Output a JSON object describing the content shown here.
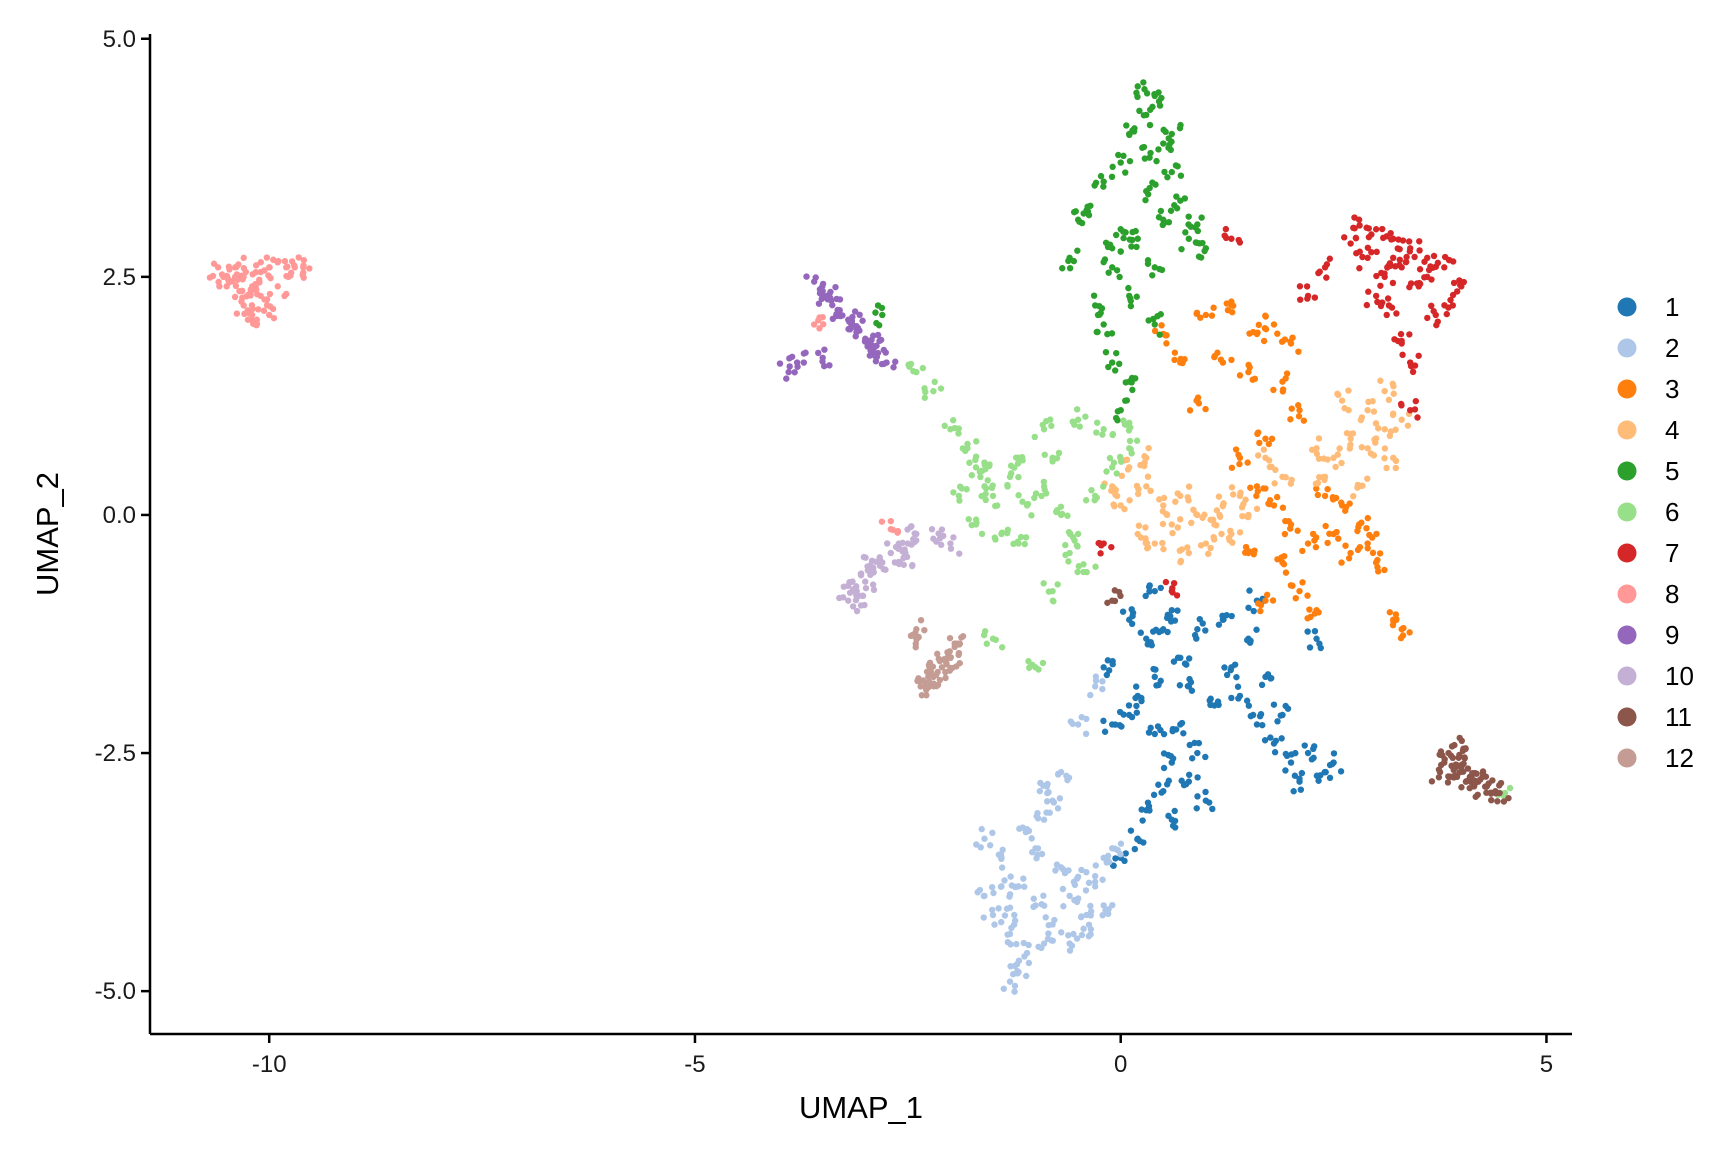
{
  "chart_data": {
    "type": "scatter",
    "xlabel": "UMAP_1",
    "ylabel": "UMAP_2",
    "xlim": [
      -11.4,
      5.3
    ],
    "ylim": [
      -5.45,
      5.05
    ],
    "xticks": [
      -10,
      -5,
      0,
      5
    ],
    "xtick_labels": [
      "-10",
      "-5",
      "0",
      "5"
    ],
    "yticks": [
      -5,
      -2.5,
      0,
      2.5,
      5
    ],
    "ytick_labels": [
      "-5.0",
      "-2.5",
      "0.0",
      "2.5",
      "5.0"
    ],
    "grid": false,
    "legend_position": "right",
    "clusters": [
      {
        "name": "1",
        "color": "#1f77b4",
        "points": [
          [
            0.1,
            -1.1
          ],
          [
            0.3,
            -1.3
          ],
          [
            0.5,
            -1.2
          ],
          [
            0.7,
            -1.5
          ],
          [
            0.4,
            -1.7
          ],
          [
            0.2,
            -1.9
          ],
          [
            0.6,
            -1.0
          ],
          [
            0.8,
            -1.8
          ],
          [
            0.1,
            -2.1
          ],
          [
            0.4,
            -2.3
          ],
          [
            0.6,
            -2.6
          ],
          [
            0.5,
            -2.9
          ],
          [
            0.3,
            -3.1
          ],
          [
            0.6,
            -3.2
          ],
          [
            0.8,
            -2.8
          ],
          [
            0.2,
            -3.4
          ],
          [
            0.0,
            -3.6
          ],
          [
            0.9,
            -2.5
          ],
          [
            1.1,
            -2.0
          ],
          [
            1.3,
            -1.6
          ],
          [
            1.5,
            -1.3
          ],
          [
            1.4,
            -1.9
          ],
          [
            1.6,
            -2.2
          ],
          [
            1.8,
            -2.4
          ],
          [
            2.0,
            -2.6
          ],
          [
            2.2,
            -2.5
          ],
          [
            2.4,
            -2.7
          ],
          [
            2.1,
            -2.8
          ],
          [
            1.7,
            -1.7
          ],
          [
            1.9,
            -2.1
          ],
          [
            1.2,
            -1.1
          ],
          [
            1.6,
            -0.9
          ],
          [
            -0.2,
            -1.6
          ],
          [
            -0.1,
            -2.2
          ],
          [
            0.9,
            -1.2
          ],
          [
            2.3,
            -1.3
          ],
          [
            0.7,
            -2.2
          ],
          [
            1.0,
            -3.0
          ],
          [
            0.4,
            -0.8
          ],
          [
            2.5,
            -2.6
          ]
        ]
      },
      {
        "name": "2",
        "color": "#aec7e8",
        "points": [
          [
            -1.6,
            -3.4
          ],
          [
            -1.4,
            -3.6
          ],
          [
            -1.2,
            -3.9
          ],
          [
            -1.0,
            -4.1
          ],
          [
            -0.8,
            -4.3
          ],
          [
            -0.6,
            -4.0
          ],
          [
            -0.4,
            -4.2
          ],
          [
            -0.2,
            -4.1
          ],
          [
            -1.5,
            -4.2
          ],
          [
            -1.3,
            -4.4
          ],
          [
            -1.1,
            -4.6
          ],
          [
            -1.2,
            -4.8
          ],
          [
            -1.0,
            -3.5
          ],
          [
            -0.9,
            -3.2
          ],
          [
            -0.8,
            -3.0
          ],
          [
            -1.3,
            -4.9
          ],
          [
            -0.7,
            -3.7
          ],
          [
            -0.5,
            -3.8
          ],
          [
            -0.3,
            -3.9
          ],
          [
            -1.4,
            -3.9
          ],
          [
            -0.9,
            -4.5
          ],
          [
            -0.6,
            -4.5
          ],
          [
            -1.6,
            -4.0
          ],
          [
            -1.1,
            -3.3
          ],
          [
            -0.5,
            -2.2
          ],
          [
            -0.7,
            -2.7
          ],
          [
            -0.3,
            -1.8
          ],
          [
            -0.2,
            -3.6
          ],
          [
            -0.1,
            -3.5
          ],
          [
            -0.95,
            -2.9
          ],
          [
            -1.25,
            -4.2
          ],
          [
            -0.35,
            -4.35
          ]
        ]
      },
      {
        "name": "3",
        "color": "#ff7f0e",
        "points": [
          [
            1.3,
            2.2
          ],
          [
            1.6,
            1.9
          ],
          [
            1.8,
            2.0
          ],
          [
            2.0,
            1.8
          ],
          [
            1.5,
            1.5
          ],
          [
            1.9,
            1.4
          ],
          [
            2.1,
            1.1
          ],
          [
            1.7,
            0.8
          ],
          [
            1.4,
            0.6
          ],
          [
            1.6,
            0.3
          ],
          [
            1.8,
            0.1
          ],
          [
            2.0,
            -0.1
          ],
          [
            2.2,
            -0.3
          ],
          [
            1.9,
            -0.5
          ],
          [
            2.1,
            -0.8
          ],
          [
            2.3,
            -1.0
          ],
          [
            2.5,
            -0.2
          ],
          [
            2.7,
            -0.4
          ],
          [
            2.9,
            -0.3
          ],
          [
            3.0,
            -0.5
          ],
          [
            2.8,
            -0.1
          ],
          [
            1.2,
            1.6
          ],
          [
            0.9,
            1.2
          ],
          [
            0.7,
            1.6
          ],
          [
            0.5,
            1.9
          ],
          [
            1.0,
            2.1
          ],
          [
            3.2,
            -1.1
          ],
          [
            3.3,
            -1.2
          ],
          [
            1.5,
            -0.4
          ],
          [
            1.7,
            -0.9
          ],
          [
            2.4,
            0.2
          ],
          [
            2.6,
            0.1
          ]
        ]
      },
      {
        "name": "4",
        "color": "#ffbb78",
        "points": [
          [
            0.1,
            0.5
          ],
          [
            0.3,
            0.3
          ],
          [
            0.5,
            0.1
          ],
          [
            0.7,
            0.2
          ],
          [
            0.9,
            0.0
          ],
          [
            1.1,
            -0.1
          ],
          [
            1.3,
            -0.2
          ],
          [
            1.5,
            0.0
          ],
          [
            0.2,
            -0.2
          ],
          [
            0.4,
            -0.3
          ],
          [
            0.6,
            -0.1
          ],
          [
            0.8,
            -0.4
          ],
          [
            1.0,
            -0.3
          ],
          [
            1.2,
            0.1
          ],
          [
            1.4,
            0.2
          ],
          [
            2.3,
            0.7
          ],
          [
            2.5,
            0.6
          ],
          [
            2.7,
            0.8
          ],
          [
            2.9,
            0.7
          ],
          [
            3.1,
            0.9
          ],
          [
            3.3,
            1.0
          ],
          [
            3.2,
            0.6
          ],
          [
            2.8,
            0.3
          ],
          [
            2.4,
            0.4
          ],
          [
            2.6,
            1.2
          ],
          [
            2.9,
            1.1
          ],
          [
            3.1,
            1.3
          ],
          [
            0.0,
            0.1
          ],
          [
            -0.1,
            0.3
          ],
          [
            0.3,
            0.6
          ],
          [
            1.9,
            0.4
          ],
          [
            1.7,
            0.6
          ]
        ]
      },
      {
        "name": "5",
        "color": "#2ca02c",
        "points": [
          [
            0.2,
            4.5
          ],
          [
            0.4,
            4.4
          ],
          [
            0.3,
            4.2
          ],
          [
            0.1,
            4.0
          ],
          [
            0.5,
            3.9
          ],
          [
            0.0,
            3.7
          ],
          [
            -0.2,
            3.5
          ],
          [
            0.6,
            3.6
          ],
          [
            0.3,
            3.4
          ],
          [
            -0.4,
            3.2
          ],
          [
            -0.5,
            3.1
          ],
          [
            0.7,
            3.3
          ],
          [
            0.5,
            3.1
          ],
          [
            0.0,
            3.0
          ],
          [
            -0.1,
            2.8
          ],
          [
            0.2,
            2.9
          ],
          [
            0.8,
            2.9
          ],
          [
            1.0,
            2.8
          ],
          [
            0.4,
            2.6
          ],
          [
            -0.1,
            2.6
          ],
          [
            0.1,
            2.3
          ],
          [
            -0.2,
            2.0
          ],
          [
            0.4,
            2.0
          ],
          [
            -0.1,
            1.6
          ],
          [
            0.1,
            1.4
          ],
          [
            0.0,
            1.1
          ],
          [
            0.6,
            4.0
          ],
          [
            0.35,
            3.8
          ],
          [
            -0.3,
            2.2
          ],
          [
            -2.8,
            2.1
          ],
          [
            -0.6,
            2.7
          ],
          [
            0.9,
            3.05
          ]
        ]
      },
      {
        "name": "6",
        "color": "#98df8a",
        "points": [
          [
            -2.0,
            0.9
          ],
          [
            -1.8,
            0.7
          ],
          [
            -1.7,
            0.5
          ],
          [
            -1.6,
            0.3
          ],
          [
            -1.5,
            0.2
          ],
          [
            -1.3,
            0.4
          ],
          [
            -1.1,
            0.1
          ],
          [
            -0.9,
            0.3
          ],
          [
            -0.7,
            0.0
          ],
          [
            -0.5,
            -0.2
          ],
          [
            -0.3,
            0.2
          ],
          [
            -0.1,
            0.5
          ],
          [
            0.1,
            0.7
          ],
          [
            -1.9,
            0.2
          ],
          [
            -1.7,
            -0.1
          ],
          [
            -1.4,
            -0.2
          ],
          [
            -1.2,
            -0.3
          ],
          [
            -0.6,
            -0.4
          ],
          [
            -0.4,
            -0.6
          ],
          [
            -0.8,
            -0.8
          ],
          [
            -1.2,
            0.6
          ],
          [
            -0.8,
            0.6
          ],
          [
            -0.2,
            0.9
          ],
          [
            -0.5,
            1.0
          ],
          [
            -2.2,
            1.3
          ],
          [
            -2.4,
            1.5
          ],
          [
            -1.5,
            -1.3
          ],
          [
            -1.0,
            -1.6
          ],
          [
            -0.9,
            0.9
          ],
          [
            0.05,
            0.95
          ],
          [
            4.5,
            -2.95
          ],
          [
            -1.6,
            0.55
          ]
        ]
      },
      {
        "name": "7",
        "color": "#d62728",
        "points": [
          [
            2.8,
            3.1
          ],
          [
            3.0,
            3.0
          ],
          [
            3.2,
            2.9
          ],
          [
            3.4,
            2.8
          ],
          [
            3.6,
            2.7
          ],
          [
            3.8,
            2.6
          ],
          [
            4.0,
            2.4
          ],
          [
            3.9,
            2.2
          ],
          [
            3.7,
            2.1
          ],
          [
            3.5,
            2.4
          ],
          [
            3.3,
            2.6
          ],
          [
            3.1,
            2.5
          ],
          [
            2.9,
            2.7
          ],
          [
            2.4,
            2.6
          ],
          [
            2.2,
            2.3
          ],
          [
            3.0,
            2.3
          ],
          [
            3.2,
            2.7
          ],
          [
            3.6,
            2.5
          ],
          [
            3.3,
            1.8
          ],
          [
            3.4,
            1.6
          ],
          [
            3.4,
            1.1
          ],
          [
            1.3,
            2.9
          ],
          [
            0.6,
            -0.8
          ],
          [
            -0.2,
            -0.3
          ],
          [
            3.15,
            2.2
          ],
          [
            2.7,
            2.85
          ]
        ]
      },
      {
        "name": "8",
        "color": "#ff9896",
        "points": [
          [
            -10.6,
            2.6
          ],
          [
            -10.4,
            2.6
          ],
          [
            -10.3,
            2.5
          ],
          [
            -10.2,
            2.4
          ],
          [
            -10.0,
            2.6
          ],
          [
            -9.8,
            2.6
          ],
          [
            -9.7,
            2.6
          ],
          [
            -9.9,
            2.4
          ],
          [
            -10.1,
            2.3
          ],
          [
            -10.3,
            2.2
          ],
          [
            -10.2,
            2.1
          ],
          [
            -10.0,
            2.1
          ],
          [
            -10.4,
            2.5
          ],
          [
            -10.5,
            2.4
          ],
          [
            -9.6,
            2.6
          ],
          [
            -10.1,
            2.55
          ],
          [
            -10.25,
            2.05
          ],
          [
            -10.35,
            2.35
          ],
          [
            -3.6,
            2.0
          ],
          [
            -2.7,
            -0.15
          ]
        ]
      },
      {
        "name": "9",
        "color": "#9467bd",
        "points": [
          [
            -3.6,
            2.45
          ],
          [
            -3.5,
            2.35
          ],
          [
            -3.4,
            2.25
          ],
          [
            -3.3,
            2.15
          ],
          [
            -3.2,
            2.05
          ],
          [
            -3.1,
            1.95
          ],
          [
            -3.0,
            1.85
          ],
          [
            -2.9,
            1.75
          ],
          [
            -2.85,
            1.7
          ],
          [
            -2.75,
            1.6
          ],
          [
            -3.9,
            1.5
          ],
          [
            -3.8,
            1.6
          ],
          [
            -3.5,
            1.65
          ],
          [
            -3.45,
            2.3
          ],
          [
            -3.15,
            2.0
          ],
          [
            -2.95,
            1.8
          ]
        ]
      },
      {
        "name": "10",
        "color": "#c5b0d5",
        "points": [
          [
            -2.4,
            -0.2
          ],
          [
            -2.5,
            -0.3
          ],
          [
            -2.6,
            -0.35
          ],
          [
            -2.7,
            -0.4
          ],
          [
            -2.8,
            -0.5
          ],
          [
            -2.9,
            -0.6
          ],
          [
            -3.0,
            -0.7
          ],
          [
            -3.1,
            -0.8
          ],
          [
            -3.2,
            -0.9
          ],
          [
            -3.15,
            -0.7
          ],
          [
            -2.2,
            -0.25
          ],
          [
            -2.0,
            -0.3
          ],
          [
            -2.55,
            -0.45
          ],
          [
            -2.95,
            -0.55
          ],
          [
            -3.05,
            -0.95
          ]
        ]
      },
      {
        "name": "11",
        "color": "#8c564b",
        "points": [
          [
            3.8,
            -2.6
          ],
          [
            3.9,
            -2.55
          ],
          [
            4.0,
            -2.65
          ],
          [
            4.1,
            -2.75
          ],
          [
            4.2,
            -2.8
          ],
          [
            4.3,
            -2.85
          ],
          [
            4.4,
            -2.9
          ],
          [
            3.75,
            -2.7
          ],
          [
            3.95,
            -2.75
          ],
          [
            4.15,
            -2.85
          ],
          [
            4.45,
            -2.92
          ],
          [
            3.85,
            -2.5
          ],
          [
            -0.1,
            -0.9
          ],
          [
            4.05,
            -2.45
          ],
          [
            4.25,
            -2.75
          ]
        ]
      },
      {
        "name": "12",
        "color": "#c49c94",
        "points": [
          [
            -2.3,
            -1.8
          ],
          [
            -2.2,
            -1.7
          ],
          [
            -2.1,
            -1.6
          ],
          [
            -2.0,
            -1.5
          ],
          [
            -1.9,
            -1.45
          ],
          [
            -2.25,
            -1.75
          ],
          [
            -2.35,
            -1.8
          ],
          [
            -2.4,
            -1.2
          ],
          [
            -2.4,
            -1.3
          ],
          [
            -2.05,
            -1.55
          ],
          [
            -1.95,
            -1.35
          ],
          [
            -2.15,
            -1.65
          ]
        ]
      }
    ]
  }
}
